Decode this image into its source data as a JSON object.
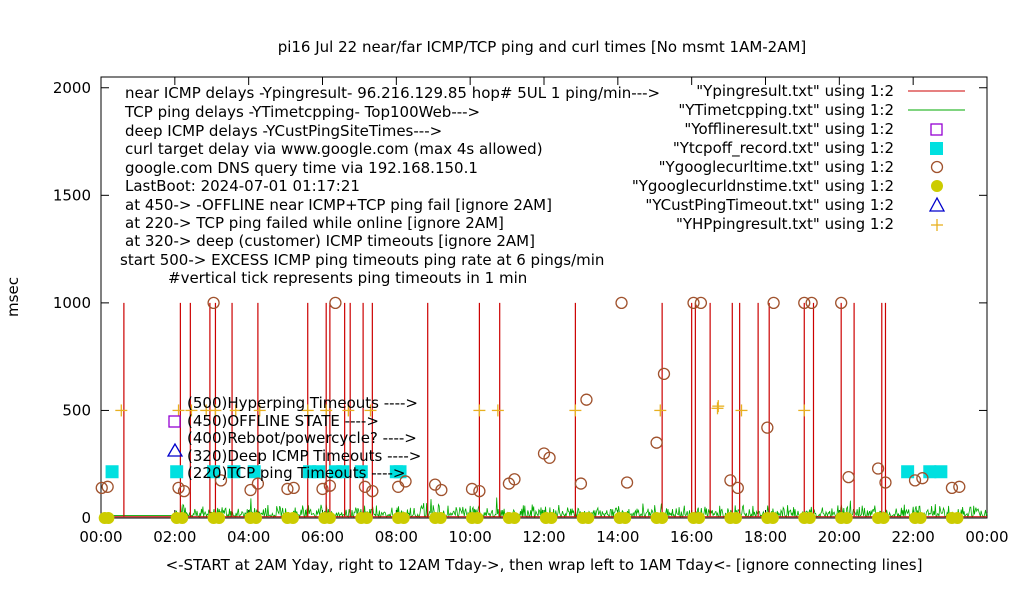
{
  "chart_data": {
    "type": "line",
    "title": "pi16 Jul 22  near/far ICMP/TCP ping and curl times [No msmt 1AM-2AM]",
    "xlabel": "<-START at 2AM Yday, right to 12AM Tday->, then wrap left to 1AM Tday<- [ignore connecting lines]",
    "ylabel": "msec",
    "xlim": [
      0,
      24
    ],
    "ylim": [
      0,
      2050
    ],
    "x_ticks": [
      {
        "v": 0,
        "label": "00:00"
      },
      {
        "v": 2,
        "label": "02:00"
      },
      {
        "v": 4,
        "label": "04:00"
      },
      {
        "v": 6,
        "label": "06:00"
      },
      {
        "v": 8,
        "label": "08:00"
      },
      {
        "v": 10,
        "label": "10:00"
      },
      {
        "v": 12,
        "label": "12:00"
      },
      {
        "v": 14,
        "label": "14:00"
      },
      {
        "v": 16,
        "label": "16:00"
      },
      {
        "v": 18,
        "label": "18:00"
      },
      {
        "v": 20,
        "label": "20:00"
      },
      {
        "v": 22,
        "label": "22:00"
      },
      {
        "v": 24,
        "label": "00:00"
      }
    ],
    "y_ticks": [
      {
        "v": 0,
        "label": "0"
      },
      {
        "v": 500,
        "label": "500"
      },
      {
        "v": 1000,
        "label": "1000"
      },
      {
        "v": 1500,
        "label": "1500"
      },
      {
        "v": 2000,
        "label": "2000"
      }
    ],
    "notes": [
      "near ICMP delays -Ypingresult- 96.216.129.85 hop# 5UL 1 ping/min--->",
      "TCP ping delays -YTimetcpping- Top100Web--->",
      "deep ICMP delays -YCustPingSiteTimes--->",
      "curl target delay via www.google.com (max 4s allowed)",
      "google.com DNS query time via 192.168.150.1",
      "LastBoot: 2024-07-01 01:17:21",
      "at 450-> -OFFLINE near ICMP+TCP ping fail [ignore 2AM]",
      "at 220-> TCP ping failed while online [ignore 2AM]",
      "at 320-> deep (customer) ICMP timeouts [ignore 2AM]",
      "start 500-> EXCESS ICMP ping timeouts ping rate at 6 pings/min",
      "#vertical tick represents ping timeouts in 1 min"
    ],
    "inner_legend": [
      "(500)Hyperping Timeouts ---->",
      "(450)OFFLINE STATE ---->",
      "(400)Reboot/powercycle? ---->",
      "(320)Deep ICMP Timeouts ---->",
      "(220)TCP ping Timeouts ---->"
    ],
    "series": [
      {
        "name": "\"Ypingresult.txt\" using 1:2",
        "color": "#cc0000",
        "style": "line",
        "spikes_x": [
          0.62,
          2.15,
          2.42,
          2.95,
          3.1,
          3.55,
          4.25,
          5.6,
          6.1,
          6.2,
          6.6,
          6.75,
          7.1,
          7.35,
          8.85,
          10.25,
          10.8,
          12.85,
          15.2,
          16.0,
          16.1,
          16.5,
          17.1,
          17.3,
          17.8,
          18.1,
          19.05,
          19.3,
          20.05,
          20.4,
          21.15,
          21.25
        ],
        "spike_value": 1000
      },
      {
        "name": "\"YTimetcpping.txt\" using 1:2",
        "color": "#00aa00",
        "style": "line",
        "baseline_range": [
          5,
          70
        ]
      },
      {
        "name": "\"Yofflineresult.txt\" using 1:2",
        "color": "#9400d3",
        "style": "open-square",
        "points": []
      },
      {
        "name": "\"Ytcpoff_record.txt\" using 1:2",
        "color": "#00e0e0",
        "style": "filled-square",
        "points": [
          [
            0.3,
            215
          ],
          [
            2.05,
            215
          ],
          [
            3.05,
            215
          ],
          [
            3.6,
            215
          ],
          [
            4.15,
            215
          ],
          [
            5.65,
            215
          ],
          [
            5.9,
            215
          ],
          [
            6.35,
            215
          ],
          [
            6.55,
            215
          ],
          [
            7.05,
            215
          ],
          [
            8.0,
            215
          ],
          [
            8.1,
            215
          ],
          [
            21.85,
            215
          ],
          [
            22.45,
            215
          ],
          [
            22.75,
            215
          ]
        ]
      },
      {
        "name": "\"Ygooglecurltime.txt\" using 1:2",
        "color": "#a0522d",
        "style": "open-circle",
        "points": [
          [
            0.02,
            140
          ],
          [
            0.18,
            145
          ],
          [
            2.1,
            140
          ],
          [
            2.25,
            125
          ],
          [
            3.05,
            1000
          ],
          [
            3.25,
            175
          ],
          [
            4.05,
            130
          ],
          [
            4.25,
            160
          ],
          [
            5.05,
            135
          ],
          [
            5.22,
            140
          ],
          [
            6.0,
            135
          ],
          [
            6.2,
            150
          ],
          [
            6.35,
            1000
          ],
          [
            7.15,
            145
          ],
          [
            7.35,
            125
          ],
          [
            8.05,
            145
          ],
          [
            8.25,
            170
          ],
          [
            9.05,
            155
          ],
          [
            9.22,
            130
          ],
          [
            10.05,
            135
          ],
          [
            10.25,
            125
          ],
          [
            11.05,
            160
          ],
          [
            11.2,
            180
          ],
          [
            12.0,
            300
          ],
          [
            12.15,
            280
          ],
          [
            13.0,
            160
          ],
          [
            13.15,
            550
          ],
          [
            14.1,
            1000
          ],
          [
            14.25,
            165
          ],
          [
            15.05,
            350
          ],
          [
            15.25,
            670
          ],
          [
            16.05,
            1000
          ],
          [
            16.25,
            1000
          ],
          [
            17.05,
            175
          ],
          [
            17.25,
            140
          ],
          [
            18.05,
            420
          ],
          [
            18.22,
            1000
          ],
          [
            19.05,
            1000
          ],
          [
            19.25,
            1000
          ],
          [
            20.05,
            1000
          ],
          [
            20.25,
            190
          ],
          [
            21.05,
            230
          ],
          [
            21.25,
            165
          ],
          [
            22.05,
            175
          ],
          [
            22.25,
            185
          ],
          [
            23.05,
            140
          ],
          [
            23.25,
            145
          ]
        ]
      },
      {
        "name": "\"Ygooglecurldnstime.txt\" using 1:2",
        "color": "#cccc00",
        "style": "filled-circle",
        "points_x": [
          0.1,
          0.2,
          2.05,
          2.2,
          3.05,
          3.2,
          4.05,
          4.2,
          5.05,
          5.2,
          6.05,
          6.2,
          7.05,
          7.2,
          8.05,
          8.2,
          9.05,
          9.2,
          10.05,
          10.2,
          11.05,
          11.2,
          12.05,
          12.2,
          13.05,
          13.2,
          14.05,
          14.2,
          15.05,
          15.2,
          16.05,
          16.2,
          17.05,
          17.2,
          18.05,
          18.2,
          19.05,
          19.2,
          20.05,
          20.2,
          21.05,
          21.2,
          22.05,
          22.2,
          23.05,
          23.2
        ],
        "value": 0
      },
      {
        "name": "\"YCustPingTimeout.txt\" using 1:2",
        "color": "#0000cc",
        "style": "open-triangle",
        "points": []
      },
      {
        "name": "\"YHPpingresult.txt\" using 1:2",
        "color": "#e8b020",
        "style": "plus",
        "points": [
          [
            0.55,
            500
          ],
          [
            2.1,
            500
          ],
          [
            2.45,
            500
          ],
          [
            2.85,
            500
          ],
          [
            3.1,
            500
          ],
          [
            3.65,
            500
          ],
          [
            4.3,
            500
          ],
          [
            5.6,
            500
          ],
          [
            6.1,
            500
          ],
          [
            6.7,
            500
          ],
          [
            7.3,
            500
          ],
          [
            10.25,
            500
          ],
          [
            10.75,
            500
          ],
          [
            12.85,
            500
          ],
          [
            15.15,
            500
          ],
          [
            16.7,
            510
          ],
          [
            16.72,
            520
          ],
          [
            17.35,
            500
          ],
          [
            19.05,
            500
          ]
        ]
      }
    ]
  }
}
